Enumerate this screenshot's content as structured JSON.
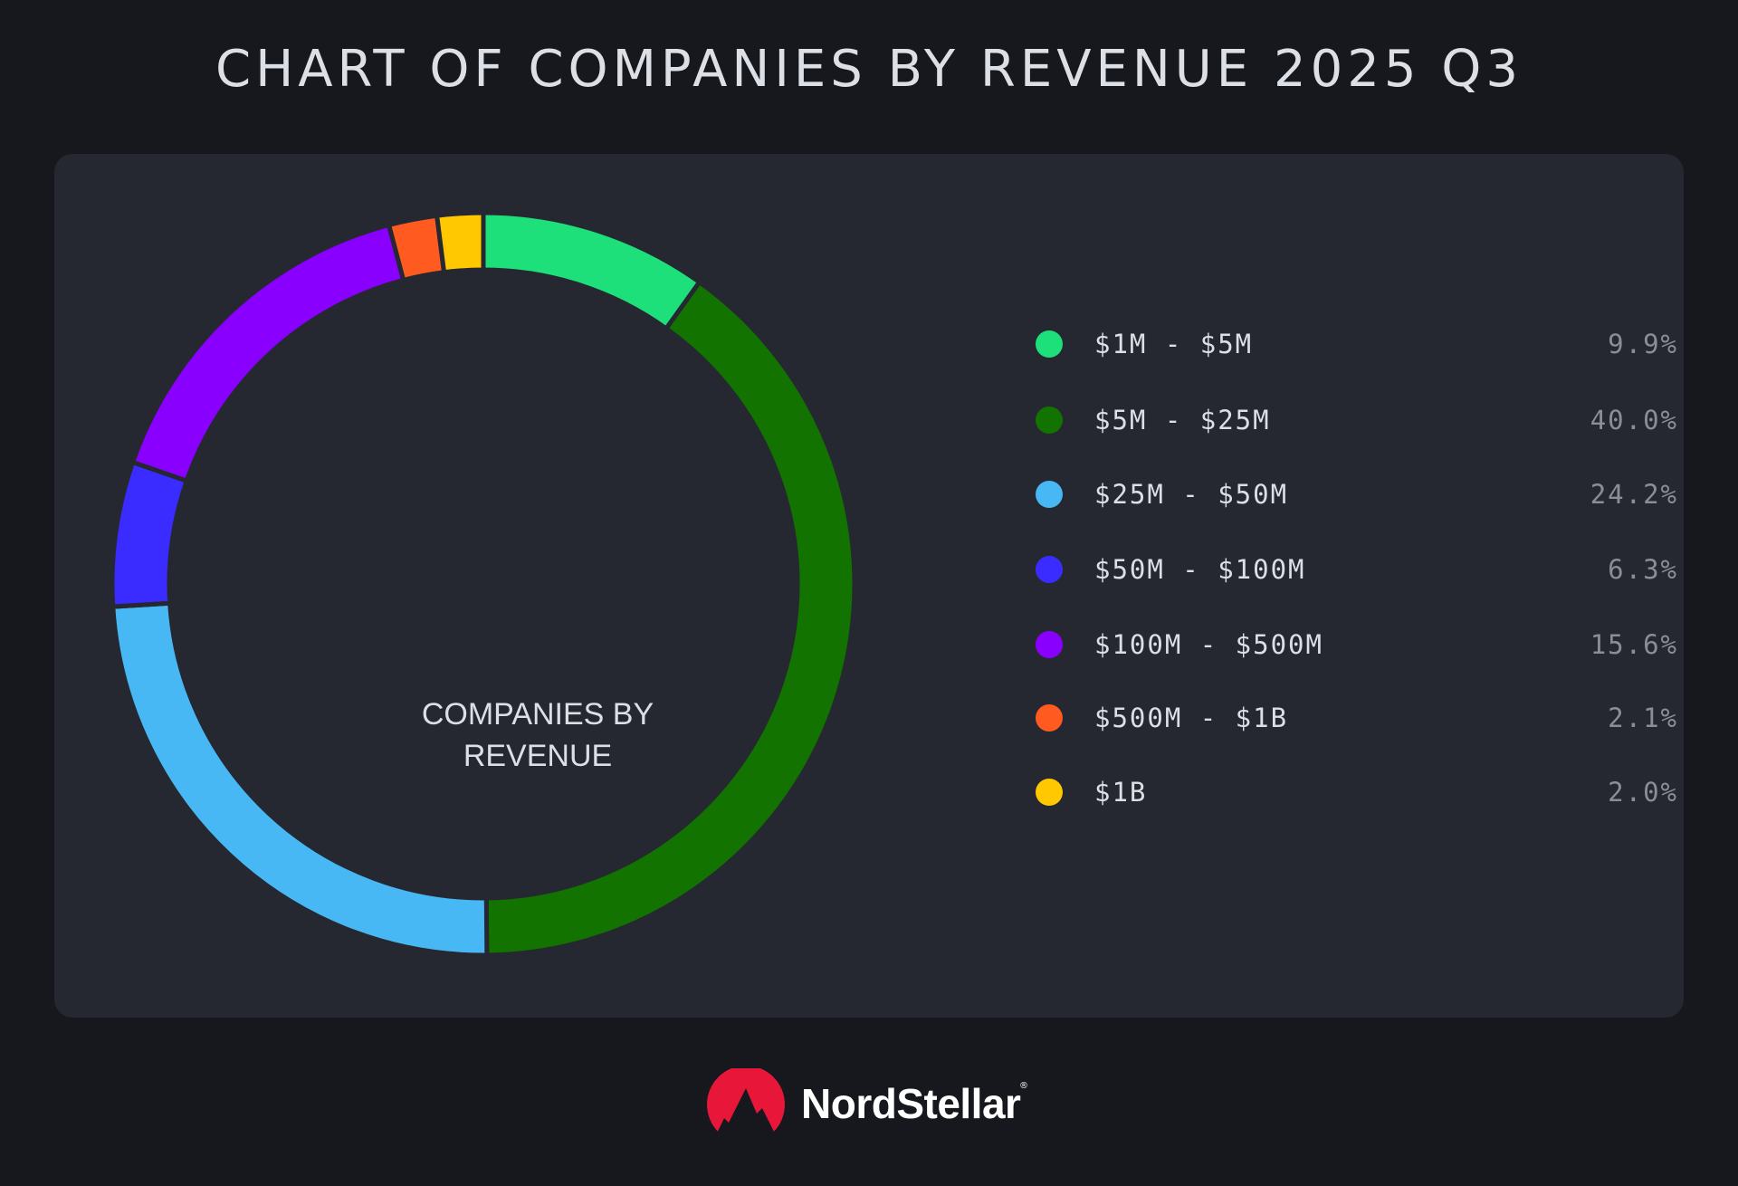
{
  "chart_data": {
    "type": "pie",
    "variant": "donut",
    "title": "CHART OF COMPANIES BY REVENUE 2025 Q3",
    "center_label": [
      "COMPANIES BY",
      "REVENUE"
    ],
    "categories": [
      "$1M - $5M",
      "$5M - $25M",
      "$25M - $50M",
      "$50M - $100M",
      "$100M - $500M",
      "$500M - $1B",
      "$1B"
    ],
    "values": [
      9.9,
      40.0,
      24.2,
      6.3,
      15.6,
      2.1,
      2.0
    ],
    "value_labels": [
      "9.9%",
      "40.0%",
      "24.2%",
      "6.3%",
      "15.6%",
      "2.1%",
      "2.0%"
    ],
    "colors": [
      "#1de07a",
      "#127300",
      "#48b8f5",
      "#3a2cff",
      "#8a00ff",
      "#ff5a1f",
      "#ffc800"
    ],
    "legend_position": "right"
  },
  "brand": {
    "name": "NordStellar",
    "mark": "®",
    "color": "#e8173a"
  }
}
